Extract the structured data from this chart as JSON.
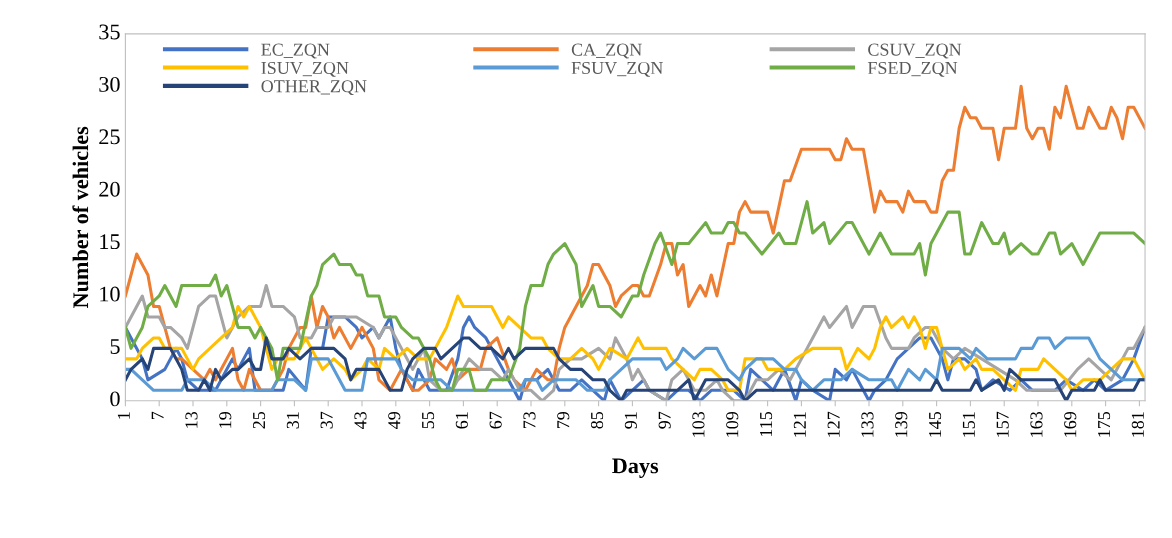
{
  "chart_data": {
    "type": "line",
    "xlabel": "Days",
    "ylabel": "Number of vehicles",
    "xlim": [
      1,
      182
    ],
    "xticks": [
      1,
      7,
      13,
      19,
      25,
      31,
      37,
      43,
      49,
      55,
      61,
      67,
      73,
      79,
      85,
      91,
      97,
      103,
      109,
      115,
      121,
      127,
      133,
      139,
      145,
      151,
      157,
      163,
      169,
      175,
      181
    ],
    "ylim": [
      0,
      35
    ],
    "yticks": [
      0,
      5,
      10,
      15,
      20,
      25,
      30,
      35
    ],
    "grid": false,
    "legend": "top left",
    "marker": "none",
    "line_style": "solid",
    "series": [
      {
        "name": "EC_ZQN",
        "color": "#4472c4",
        "x": [
          1,
          2,
          4,
          5,
          8,
          10,
          11,
          12,
          14,
          17,
          18,
          20,
          21,
          23,
          24,
          29,
          30,
          33,
          34,
          36,
          37,
          40,
          42,
          43,
          45,
          46,
          48,
          49,
          50,
          52,
          53,
          55,
          58,
          60,
          61,
          62,
          63,
          65,
          67,
          69,
          71,
          72,
          74,
          76,
          78,
          80,
          82,
          84,
          86,
          87,
          89,
          91,
          93,
          94,
          97,
          99,
          101,
          103,
          105,
          109,
          111,
          112,
          114,
          116,
          117,
          118,
          120,
          121,
          123,
          126,
          127,
          129,
          130,
          133,
          134,
          136,
          138,
          140,
          142,
          144,
          146,
          147,
          148,
          150,
          152,
          153,
          155,
          158,
          160,
          162,
          166,
          168,
          171,
          173,
          175,
          178,
          180,
          182
        ],
        "values": [
          7,
          6,
          4,
          2,
          3,
          5,
          4,
          2,
          1,
          1,
          2,
          4,
          3,
          5,
          1,
          1,
          3,
          1,
          5,
          5,
          8,
          8,
          7,
          6,
          7,
          6,
          8,
          5,
          3,
          1,
          3,
          1,
          1,
          4,
          7,
          8,
          7,
          6,
          4,
          2,
          0,
          2,
          2,
          3,
          1,
          1,
          2,
          1,
          0,
          2,
          0,
          1,
          2,
          1,
          0,
          1,
          1,
          0,
          1,
          1,
          0,
          3,
          2,
          1,
          2,
          3,
          0,
          2,
          1,
          0,
          3,
          2,
          3,
          0,
          1,
          2,
          4,
          5,
          6,
          6,
          4,
          2,
          4,
          4,
          3,
          1,
          2,
          1,
          2,
          1,
          1,
          2,
          1,
          2,
          1,
          2,
          4,
          7
        ]
      },
      {
        "name": "CA_ZQN",
        "color": "#ed7d31",
        "x": [
          1,
          3,
          5,
          6,
          7,
          9,
          10,
          11,
          13,
          15,
          16,
          17,
          20,
          21,
          22,
          23,
          24,
          25,
          27,
          29,
          30,
          32,
          33,
          34,
          35,
          36,
          37,
          38,
          39,
          41,
          43,
          45,
          46,
          48,
          50,
          52,
          53,
          55,
          56,
          58,
          59,
          60,
          62,
          64,
          65,
          67,
          69,
          70,
          72,
          74,
          76,
          77,
          78,
          79,
          81,
          83,
          84,
          85,
          87,
          88,
          89,
          91,
          92,
          93,
          94,
          96,
          97,
          98,
          99,
          100,
          101,
          103,
          104,
          105,
          106,
          108,
          109,
          110,
          111,
          112,
          115,
          116,
          118,
          119,
          121,
          126,
          127,
          128,
          129,
          130,
          132,
          134,
          135,
          136,
          138,
          139,
          140,
          141,
          143,
          144,
          145,
          146,
          147,
          148,
          149,
          150,
          151,
          152,
          153,
          155,
          156,
          157,
          159,
          160,
          161,
          162,
          163,
          164,
          165,
          166,
          167,
          168,
          169,
          170,
          171,
          172,
          173,
          174,
          175,
          176,
          177,
          178,
          179,
          180,
          182
        ],
        "values": [
          10,
          14,
          12,
          9,
          9,
          5,
          4,
          4,
          3,
          2,
          3,
          2,
          5,
          2,
          1,
          3,
          2,
          1,
          1,
          3,
          5,
          7,
          7,
          10,
          7,
          9,
          8,
          6,
          7,
          5,
          7,
          5,
          2,
          1,
          3,
          1,
          1,
          2,
          4,
          3,
          4,
          2,
          3,
          3,
          5,
          6,
          3,
          2,
          1,
          3,
          2,
          2,
          5,
          7,
          9,
          11,
          13,
          13,
          11,
          9,
          10,
          11,
          11,
          10,
          10,
          13,
          15,
          15,
          12,
          13,
          9,
          11,
          10,
          12,
          10,
          15,
          15,
          18,
          19,
          18,
          18,
          16,
          21,
          21,
          24,
          24,
          23,
          23,
          25,
          24,
          24,
          18,
          20,
          19,
          19,
          18,
          20,
          19,
          19,
          18,
          18,
          21,
          22,
          22,
          26,
          28,
          27,
          27,
          26,
          26,
          23,
          26,
          26,
          30,
          26,
          25,
          26,
          26,
          24,
          28,
          27,
          30,
          28,
          26,
          26,
          28,
          27,
          26,
          26,
          28,
          27,
          25,
          28,
          28,
          26
        ]
      },
      {
        "name": "CSUV_ZQN",
        "color": "#a5a5a5",
        "x": [
          1,
          2,
          4,
          5,
          7,
          8,
          9,
          11,
          12,
          13,
          14,
          16,
          17,
          18,
          19,
          21,
          23,
          25,
          26,
          27,
          29,
          31,
          32,
          34,
          35,
          37,
          38,
          42,
          45,
          46,
          47,
          48,
          50,
          52,
          54,
          55,
          57,
          59,
          61,
          62,
          64,
          66,
          68,
          69,
          71,
          73,
          75,
          77,
          78,
          80,
          82,
          85,
          87,
          88,
          90,
          91,
          92,
          94,
          97,
          98,
          100,
          102,
          104,
          106,
          107,
          109,
          111,
          113,
          115,
          117,
          119,
          121,
          123,
          125,
          126,
          129,
          130,
          132,
          134,
          136,
          137,
          140,
          141,
          143,
          144,
          146,
          148,
          150,
          153,
          156,
          159,
          161,
          164,
          167,
          170,
          172,
          174,
          176,
          179,
          180,
          182
        ],
        "values": [
          7,
          8,
          10,
          8,
          8,
          7,
          7,
          6,
          5,
          7,
          9,
          10,
          10,
          8,
          6,
          8,
          9,
          9,
          11,
          9,
          9,
          8,
          6,
          6,
          7,
          7,
          8,
          8,
          7,
          6,
          7,
          7,
          5,
          3,
          5,
          2,
          1,
          1,
          3,
          4,
          3,
          3,
          2,
          3,
          1,
          1,
          0,
          1,
          3,
          4,
          4,
          5,
          4,
          6,
          4,
          2,
          3,
          1,
          0,
          2,
          3,
          1,
          1,
          2,
          1,
          0,
          0,
          2,
          2,
          3,
          2,
          4,
          6,
          8,
          7,
          9,
          7,
          9,
          9,
          6,
          5,
          5,
          6,
          7,
          7,
          5,
          4,
          5,
          4,
          3,
          2,
          1,
          1,
          1,
          3,
          4,
          3,
          2,
          5,
          5,
          7
        ]
      },
      {
        "name": "ISUV_ZQN",
        "color": "#ffc000",
        "x": [
          1,
          3,
          4,
          6,
          7,
          8,
          11,
          13,
          14,
          16,
          18,
          20,
          21,
          22,
          23,
          25,
          26,
          27,
          28,
          31,
          33,
          34,
          36,
          38,
          40,
          41,
          43,
          44,
          46,
          47,
          49,
          51,
          53,
          55,
          56,
          58,
          60,
          61,
          66,
          68,
          69,
          71,
          73,
          75,
          76,
          78,
          80,
          82,
          84,
          85,
          87,
          90,
          92,
          93,
          97,
          98,
          100,
          102,
          103,
          105,
          107,
          108,
          110,
          111,
          114,
          115,
          118,
          120,
          123,
          128,
          129,
          131,
          133,
          134,
          135,
          136,
          137,
          139,
          140,
          141,
          142,
          143,
          144,
          145,
          146,
          147,
          149,
          150,
          152,
          153,
          155,
          157,
          159,
          160,
          163,
          164,
          166,
          168,
          169,
          171,
          174,
          176,
          178,
          180,
          182
        ],
        "values": [
          4,
          4,
          5,
          6,
          6,
          5,
          5,
          3,
          4,
          5,
          6,
          7,
          9,
          8,
          9,
          7,
          5,
          3,
          4,
          4,
          6,
          5,
          3,
          4,
          3,
          2,
          3,
          4,
          3,
          5,
          4,
          5,
          4,
          4,
          5,
          7,
          10,
          9,
          9,
          7,
          8,
          7,
          6,
          6,
          5,
          4,
          4,
          5,
          4,
          3,
          5,
          4,
          6,
          5,
          5,
          4,
          3,
          2,
          3,
          3,
          2,
          1,
          1,
          4,
          4,
          3,
          3,
          4,
          5,
          5,
          3,
          5,
          4,
          5,
          7,
          8,
          7,
          8,
          7,
          8,
          7,
          5,
          7,
          7,
          5,
          3,
          4,
          3,
          4,
          3,
          3,
          2,
          1,
          3,
          3,
          4,
          3,
          2,
          1,
          2,
          2,
          3,
          4,
          4,
          2
        ]
      },
      {
        "name": "FSUV_ZQN",
        "color": "#5b9bd5",
        "x": [
          1,
          2,
          4,
          6,
          11,
          12,
          15,
          17,
          27,
          28,
          31,
          33,
          34,
          37,
          39,
          40,
          43,
          44,
          45,
          49,
          50,
          52,
          57,
          59,
          71,
          72,
          74,
          75,
          77,
          81,
          83,
          86,
          87,
          89,
          91,
          96,
          97,
          99,
          100,
          102,
          104,
          106,
          107,
          108,
          110,
          111,
          113,
          116,
          118,
          120,
          121,
          123,
          125,
          128,
          130,
          133,
          137,
          138,
          139,
          140,
          142,
          143,
          145,
          146,
          149,
          151,
          152,
          154,
          159,
          160,
          162,
          163,
          165,
          166,
          168,
          172,
          174,
          176,
          178,
          182
        ],
        "values": [
          3,
          3,
          2,
          1,
          1,
          2,
          2,
          1,
          1,
          2,
          2,
          1,
          4,
          4,
          2,
          1,
          1,
          4,
          4,
          4,
          3,
          2,
          2,
          1,
          1,
          2,
          2,
          1,
          2,
          2,
          1,
          1,
          2,
          3,
          4,
          4,
          3,
          4,
          5,
          4,
          5,
          5,
          4,
          3,
          2,
          3,
          4,
          4,
          3,
          3,
          2,
          1,
          2,
          2,
          3,
          2,
          2,
          1,
          2,
          3,
          2,
          3,
          2,
          5,
          5,
          4,
          5,
          4,
          4,
          5,
          5,
          6,
          6,
          5,
          6,
          6,
          4,
          3,
          2,
          2
        ]
      },
      {
        "name": "FSED_ZQN",
        "color": "#70ad47",
        "x": [
          1,
          2,
          4,
          5,
          7,
          8,
          10,
          11,
          16,
          17,
          18,
          19,
          20,
          21,
          23,
          24,
          25,
          27,
          28,
          29,
          32,
          34,
          35,
          36,
          38,
          39,
          41,
          42,
          43,
          44,
          46,
          47,
          49,
          50,
          52,
          53,
          55,
          56,
          57,
          59,
          60,
          62,
          63,
          65,
          66,
          69,
          71,
          72,
          73,
          75,
          76,
          77,
          79,
          81,
          82,
          84,
          85,
          87,
          89,
          91,
          92,
          93,
          95,
          96,
          98,
          99,
          101,
          104,
          105,
          107,
          108,
          109,
          110,
          111,
          114,
          117,
          118,
          120,
          122,
          123,
          125,
          126,
          129,
          130,
          133,
          134,
          135,
          137,
          141,
          142,
          143,
          144,
          145,
          147,
          149,
          150,
          151,
          153,
          155,
          156,
          157,
          158,
          160,
          162,
          163,
          165,
          166,
          167,
          169,
          171,
          174,
          180,
          182
        ],
        "values": [
          7,
          5,
          7,
          9,
          10,
          11,
          9,
          11,
          11,
          12,
          10,
          11,
          9,
          7,
          7,
          6,
          7,
          5,
          2,
          5,
          5,
          10,
          11,
          13,
          14,
          13,
          13,
          12,
          12,
          10,
          10,
          8,
          8,
          7,
          6,
          6,
          4,
          2,
          1,
          1,
          3,
          3,
          1,
          1,
          2,
          2,
          5,
          9,
          11,
          11,
          13,
          14,
          15,
          13,
          9,
          11,
          9,
          9,
          8,
          10,
          10,
          12,
          15,
          16,
          13,
          15,
          15,
          17,
          16,
          16,
          17,
          17,
          16,
          16,
          14,
          16,
          15,
          15,
          19,
          16,
          17,
          15,
          17,
          17,
          14,
          15,
          16,
          14,
          14,
          15,
          12,
          15,
          16,
          18,
          18,
          14,
          14,
          17,
          15,
          15,
          16,
          14,
          15,
          14,
          14,
          16,
          16,
          14,
          15,
          13,
          16,
          16,
          15
        ]
      },
      {
        "name": "OTHER_ZQN",
        "color": "#264478",
        "x": [
          1,
          2,
          4,
          5,
          6,
          9,
          11,
          12,
          14,
          15,
          16,
          17,
          18,
          20,
          21,
          23,
          24,
          25,
          26,
          27,
          29,
          30,
          32,
          34,
          38,
          40,
          41,
          42,
          46,
          48,
          50,
          51,
          52,
          54,
          56,
          57,
          59,
          61,
          62,
          64,
          66,
          68,
          69,
          70,
          72,
          77,
          78,
          80,
          82,
          84,
          86,
          87,
          89,
          90,
          99,
          101,
          102,
          104,
          108,
          110,
          111,
          113,
          144,
          145,
          146,
          151,
          152,
          153,
          156,
          157,
          158,
          160,
          166,
          167,
          168,
          169,
          173,
          174,
          175,
          180,
          181,
          182
        ],
        "values": [
          2,
          3,
          4,
          3,
          5,
          5,
          3,
          1,
          1,
          2,
          1,
          3,
          2,
          3,
          3,
          4,
          3,
          3,
          6,
          4,
          4,
          5,
          4,
          5,
          5,
          4,
          2,
          3,
          3,
          1,
          1,
          3,
          4,
          5,
          5,
          4,
          5,
          6,
          6,
          5,
          5,
          4,
          5,
          4,
          5,
          5,
          4,
          3,
          3,
          2,
          2,
          1,
          0,
          1,
          1,
          2,
          0,
          2,
          2,
          1,
          0,
          1,
          1,
          2,
          1,
          1,
          2,
          1,
          2,
          1,
          3,
          2,
          2,
          1,
          0,
          1,
          1,
          2,
          1,
          1,
          2,
          2
        ]
      }
    ]
  }
}
